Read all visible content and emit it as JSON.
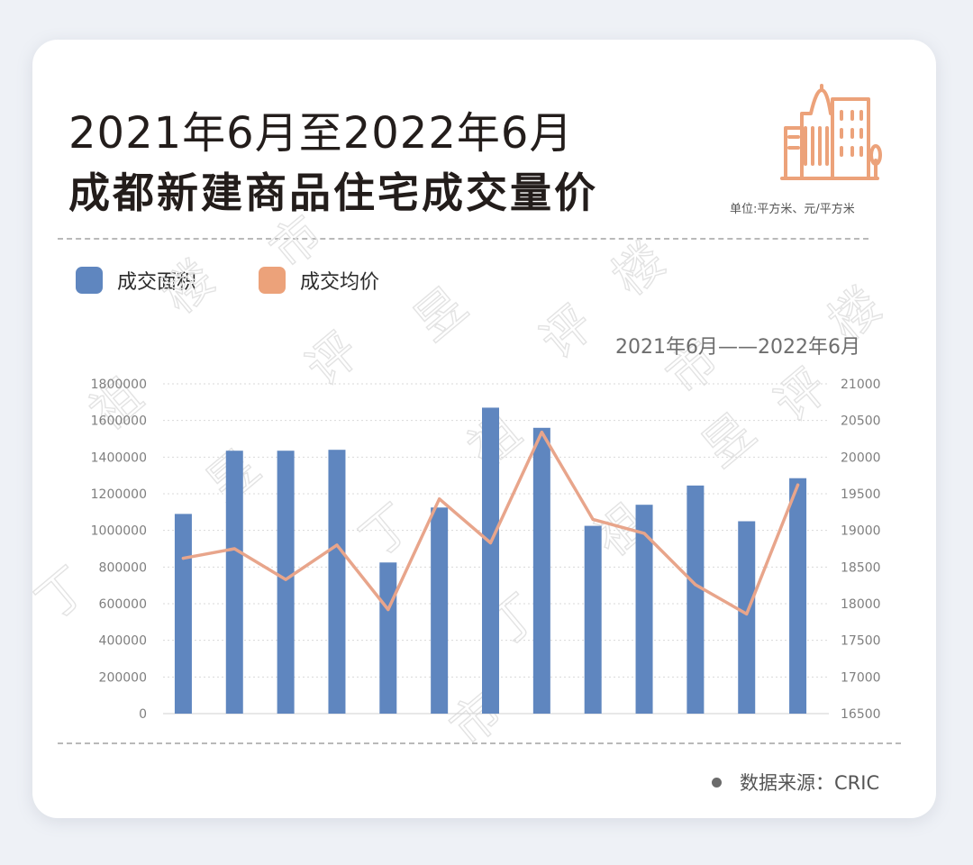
{
  "header": {
    "title_line1": "2021年6月至2022年6月",
    "title_line2": "成都新建商品住宅成交量价",
    "unit_note": "单位:平方米、元/平方米",
    "icon": "buildings-icon"
  },
  "legend": [
    {
      "label": "成交面积",
      "color": "#5f86bf"
    },
    {
      "label": "成交均价",
      "color": "#eca27a"
    }
  ],
  "source": "数据来源：CRIC",
  "watermark": [
    "丁",
    "祖",
    "昱",
    "评",
    "楼",
    "市"
  ],
  "colors": {
    "bar": "#5f86bf",
    "line": "#e8a58b",
    "title": "#231d1b",
    "icon": "#eca27a"
  },
  "chart_data": {
    "type": "bar",
    "range_label": "2021年6月——2022年6月",
    "categories": [
      "",
      "",
      "",
      "",
      "",
      "",
      "",
      "",
      "",
      "",
      "",
      "",
      ""
    ],
    "series": [
      {
        "name": "成交面积",
        "type": "bar",
        "axis": "left",
        "values": [
          1090000,
          1435000,
          1435000,
          1440000,
          825000,
          1125000,
          1670000,
          1560000,
          1025000,
          1140000,
          1245000,
          1050000,
          1285000
        ]
      },
      {
        "name": "成交均价",
        "type": "line",
        "axis": "right",
        "values": [
          18620,
          18750,
          18330,
          18800,
          17920,
          19430,
          18830,
          20340,
          19150,
          18960,
          18260,
          17860,
          19620
        ]
      }
    ],
    "y_left": {
      "min": 0,
      "max": 1800000,
      "ticks": [
        "0",
        "200000",
        "400000",
        "600000",
        "800000",
        "1000000",
        "1200000",
        "1400000",
        "1600000",
        "1800000"
      ]
    },
    "y_right": {
      "min": 16500,
      "max": 21000,
      "ticks": [
        "16500",
        "17000",
        "17500",
        "18000",
        "18500",
        "19000",
        "19500",
        "20000",
        "20500",
        "21000"
      ]
    },
    "grid": true
  }
}
